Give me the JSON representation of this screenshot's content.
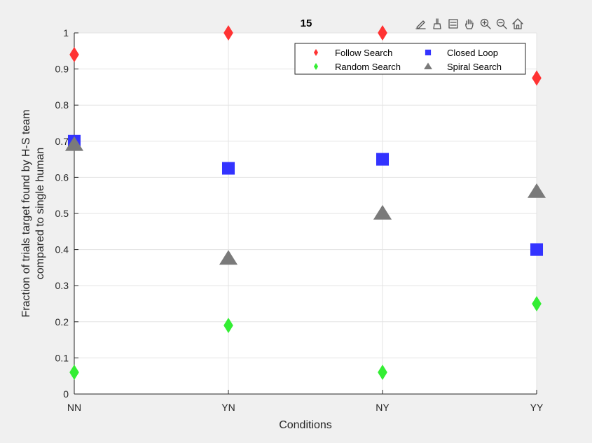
{
  "chart_data": {
    "type": "scatter",
    "title": "15",
    "xlabel": "Conditions",
    "ylabel_lines": [
      "Fraction of trials target found by H-S team",
      "compared to single human"
    ],
    "categories": [
      "NN",
      "YN",
      "NY",
      "YY"
    ],
    "ylim": [
      0,
      1
    ],
    "yticks": [
      0,
      0.1,
      0.2,
      0.3,
      0.4,
      0.5,
      0.6,
      0.7,
      0.8,
      0.9,
      1
    ],
    "ytick_labels": [
      "0",
      "0.1",
      "0.2",
      "0.3",
      "0.4",
      "0.5",
      "0.6",
      "0.7",
      "0.8",
      "0.9",
      "1"
    ],
    "grid": true,
    "legend_position": "top-right",
    "series": [
      {
        "name": "Follow Search",
        "marker": "diamond",
        "color": "#ff3333",
        "values": [
          0.94,
          1.0,
          1.0,
          0.875
        ]
      },
      {
        "name": "Closed Loop",
        "marker": "square",
        "color": "#3333ff",
        "values": [
          0.7,
          0.625,
          0.65,
          0.4
        ]
      },
      {
        "name": "Random Search",
        "marker": "diamond",
        "color": "#33ee33",
        "values": [
          0.06,
          0.19,
          0.06,
          0.25
        ]
      },
      {
        "name": "Spiral Search",
        "marker": "triangle",
        "color": "#7a7a7a",
        "values": [
          0.69,
          0.375,
          0.5,
          0.56
        ]
      }
    ]
  },
  "toolbar": {
    "icons": [
      "edit-icon",
      "brush-icon",
      "legend-icon",
      "pan-hand-icon",
      "zoom-in-icon",
      "zoom-out-icon",
      "home-icon"
    ]
  }
}
